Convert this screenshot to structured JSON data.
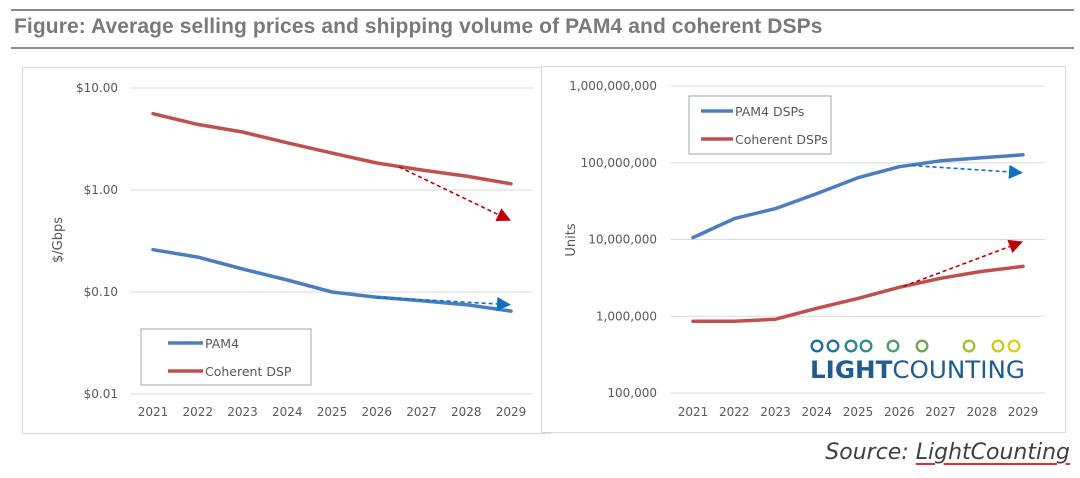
{
  "figure": {
    "title": "Figure: Average selling prices and shipping volume of PAM4 and coherent DSPs",
    "source_prefix": "Source: ",
    "source_link": "LightCounting"
  },
  "colors": {
    "pam4": "#4a7ebf",
    "coherent": "#c0504d",
    "arrow_blue": "#0f6fc6",
    "arrow_red": "#c00000",
    "grid": "#d9d9d9",
    "rule": "#8c8c8c"
  },
  "logo": {
    "text_bold": "LIGHT",
    "text_regular": "COUNTING"
  },
  "chart_data": [
    {
      "type": "line",
      "title": "",
      "xlabel": "",
      "ylabel": "$/Gbps",
      "yscale": "log",
      "ylim": [
        0.01,
        10
      ],
      "yticks": [
        10,
        1,
        0.1,
        0.01
      ],
      "ytick_labels": [
        "$10.00",
        "$1.00",
        "$0.10",
        "$0.01"
      ],
      "grid": true,
      "legend_position": "bottom-left",
      "categories": [
        "2021",
        "2022",
        "2023",
        "2024",
        "2025",
        "2026",
        "2027",
        "2028",
        "2029"
      ],
      "series": [
        {
          "name": "PAM4",
          "color_key": "pam4",
          "values": [
            0.26,
            0.22,
            0.168,
            0.131,
            0.1,
            0.089,
            0.082,
            0.075,
            0.065
          ]
        },
        {
          "name": "Coherent DSP",
          "color_key": "coherent",
          "values": [
            5.6,
            4.4,
            3.7,
            2.9,
            2.3,
            1.84,
            1.57,
            1.37,
            1.15
          ]
        }
      ],
      "annotations": [
        {
          "type": "dashed-arrow",
          "color_key": "arrow_red",
          "from": {
            "x": 2026.5,
            "y": 1.68
          },
          "to": {
            "x": 2029,
            "y": 0.5
          }
        },
        {
          "type": "dashed-arrow",
          "color_key": "arrow_blue",
          "from": {
            "x": 2026,
            "y": 0.089
          },
          "to": {
            "x": 2029,
            "y": 0.075
          }
        }
      ]
    },
    {
      "type": "line",
      "title": "",
      "xlabel": "",
      "ylabel": "Units",
      "yscale": "log",
      "ylim": [
        100000,
        1000000000
      ],
      "yticks": [
        1000000000,
        100000000,
        10000000,
        1000000,
        100000
      ],
      "ytick_labels": [
        "1,000,000,000",
        "100,000,000",
        "10,000,000",
        "1,000,000",
        "100,000"
      ],
      "grid": true,
      "legend_position": "top-left",
      "categories": [
        "2021",
        "2022",
        "2023",
        "2024",
        "2025",
        "2026",
        "2027",
        "2028",
        "2029"
      ],
      "series": [
        {
          "name": "PAM4 DSPs",
          "color_key": "pam4",
          "values": [
            10600000,
            18700000,
            25300000,
            39600000,
            63900000,
            88700000,
            106000000,
            116000000,
            127000000
          ]
        },
        {
          "name": "Coherent DSPs",
          "color_key": "coherent",
          "values": [
            860000,
            860000,
            914000,
            1270000,
            1710000,
            2380000,
            3120000,
            3840000,
            4460000
          ]
        }
      ],
      "annotations": [
        {
          "type": "dashed-arrow",
          "color_key": "arrow_blue",
          "from": {
            "x": 2026.3,
            "y": 92000000
          },
          "to": {
            "x": 2029,
            "y": 74000000
          }
        },
        {
          "type": "dashed-arrow",
          "color_key": "arrow_red",
          "from": {
            "x": 2026.1,
            "y": 2450000
          },
          "to": {
            "x": 2029,
            "y": 9400000
          }
        }
      ]
    }
  ]
}
